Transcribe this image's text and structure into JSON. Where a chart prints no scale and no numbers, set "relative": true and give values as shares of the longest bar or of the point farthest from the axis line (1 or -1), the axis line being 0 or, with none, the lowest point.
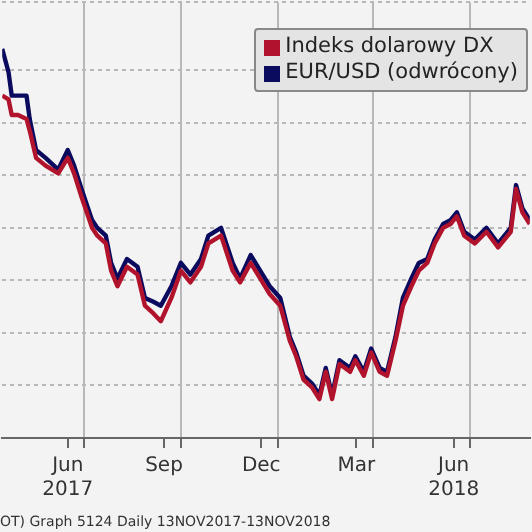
{
  "chart_data": {
    "type": "line",
    "relative": true,
    "grid": true,
    "legend": "top right",
    "marker": "none",
    "line_style": "solid",
    "x": [
      "2017-04-15",
      "2017-04-21",
      "2017-04-24",
      "2017-04-30",
      "2017-05-08",
      "2017-05-11",
      "2017-05-17",
      "2017-05-26",
      "2017-06-07",
      "2017-06-16",
      "2017-06-22",
      "2017-06-29",
      "2017-07-09",
      "2017-07-14",
      "2017-07-22",
      "2017-07-27",
      "2017-08-02",
      "2017-08-11",
      "2017-08-21",
      "2017-08-28",
      "2017-09-05",
      "2017-09-12",
      "2017-09-22",
      "2017-10-01",
      "2017-10-10",
      "2017-10-20",
      "2017-10-27",
      "2017-11-08",
      "2017-11-19",
      "2017-11-26",
      "2017-12-06",
      "2017-12-15",
      "2017-12-24",
      "2018-01-03",
      "2018-01-12",
      "2018-01-18",
      "2018-01-25",
      "2018-02-02",
      "2018-02-09",
      "2018-02-15",
      "2018-02-21",
      "2018-02-28",
      "2018-03-10",
      "2018-03-15",
      "2018-03-23",
      "2018-03-30",
      "2018-04-07",
      "2018-04-14",
      "2018-04-22",
      "2018-04-29",
      "2018-05-07",
      "2018-05-14",
      "2018-05-22",
      "2018-05-29",
      "2018-06-06",
      "2018-06-13",
      "2018-06-19",
      "2018-06-26",
      "2018-07-06",
      "2018-07-17",
      "2018-07-28",
      "2018-08-09",
      "2018-08-14",
      "2018-08-20",
      "2018-08-27"
    ],
    "xlim": [
      "2017-04-15",
      "2018-08-27"
    ],
    "xticks": [
      {
        "value": "2017-06-16",
        "label": "Jun\n2017"
      },
      {
        "value": "2017-07-01",
        "label": null
      },
      {
        "value": "2017-09-15",
        "label": "Sep"
      },
      {
        "value": "2017-10-01",
        "label": null
      },
      {
        "value": "2017-12-16",
        "label": "Dec"
      },
      {
        "value": "2018-01-01",
        "label": null
      },
      {
        "value": "2018-03-16",
        "label": "Mar"
      },
      {
        "value": "2018-04-01",
        "label": null
      },
      {
        "value": "2018-06-16",
        "label": "Jun\n2018"
      },
      {
        "value": "2018-07-01",
        "label": null
      }
    ],
    "series": [
      {
        "name": "Indeks dolarowy DX",
        "color": "#b0132b",
        "values": [
          0.88,
          0.87,
          0.83,
          0.83,
          0.82,
          0.79,
          0.72,
          0.7,
          0.68,
          0.72,
          0.68,
          0.62,
          0.54,
          0.52,
          0.5,
          0.43,
          0.39,
          0.44,
          0.42,
          0.34,
          0.32,
          0.3,
          0.36,
          0.43,
          0.4,
          0.44,
          0.5,
          0.52,
          0.43,
          0.4,
          0.45,
          0.41,
          0.37,
          0.34,
          0.25,
          0.21,
          0.15,
          0.13,
          0.1,
          0.17,
          0.1,
          0.19,
          0.17,
          0.2,
          0.16,
          0.22,
          0.17,
          0.16,
          0.25,
          0.34,
          0.39,
          0.43,
          0.45,
          0.5,
          0.54,
          0.55,
          0.57,
          0.52,
          0.5,
          0.53,
          0.49,
          0.53,
          0.64,
          0.58,
          0.55
        ]
      },
      {
        "name": "EUR/USD (odwrócony)",
        "color": "#0a0a5e",
        "values": [
          1.0,
          0.94,
          0.88,
          0.88,
          0.88,
          0.82,
          0.74,
          0.72,
          0.69,
          0.74,
          0.7,
          0.64,
          0.56,
          0.54,
          0.52,
          0.45,
          0.41,
          0.46,
          0.44,
          0.36,
          0.35,
          0.34,
          0.39,
          0.45,
          0.42,
          0.46,
          0.52,
          0.54,
          0.45,
          0.41,
          0.47,
          0.43,
          0.39,
          0.36,
          0.26,
          0.22,
          0.16,
          0.14,
          0.11,
          0.18,
          0.11,
          0.2,
          0.18,
          0.21,
          0.17,
          0.23,
          0.18,
          0.17,
          0.26,
          0.36,
          0.41,
          0.45,
          0.46,
          0.51,
          0.55,
          0.56,
          0.58,
          0.53,
          0.51,
          0.54,
          0.5,
          0.54,
          0.65,
          0.59,
          0.56
        ]
      }
    ],
    "annotations": [
      "OT) Graph 5124 Daily 13NOV2017-13NOV2018"
    ]
  }
}
